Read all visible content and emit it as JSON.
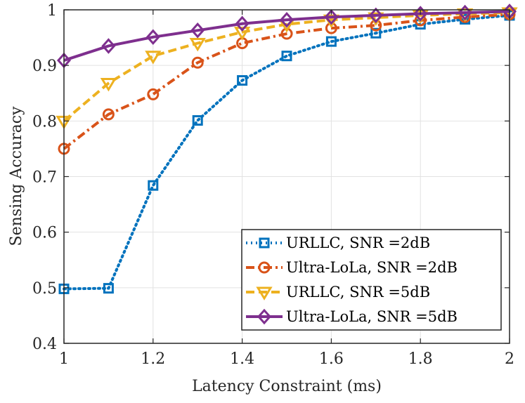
{
  "chart_data": {
    "type": "line",
    "title": "",
    "xlabel": "Latency Constraint (ms)",
    "ylabel": "Sensing Accuracy",
    "xlim": [
      1,
      2
    ],
    "ylim": [
      0.4,
      1
    ],
    "grid": true,
    "legend_position": "bottom-right",
    "x": [
      1.0,
      1.1,
      1.2,
      1.3,
      1.4,
      1.5,
      1.6,
      1.7,
      1.8,
      1.9,
      2.0
    ],
    "x_ticks": [
      1,
      1.2,
      1.4,
      1.6,
      1.8,
      2
    ],
    "x_tick_labels": [
      "1",
      "1.2",
      "1.4",
      "1.6",
      "1.8",
      "2"
    ],
    "y_ticks": [
      0.4,
      0.5,
      0.6,
      0.7,
      0.8,
      0.9,
      1
    ],
    "y_tick_labels": [
      "0.4",
      "0.5",
      "0.6",
      "0.7",
      "0.8",
      "0.9",
      "1"
    ],
    "series": [
      {
        "name": "URLLC, SNR =2dB",
        "color": "#0072BD",
        "style": "dotted",
        "marker": "square",
        "values": [
          0.498,
          0.499,
          0.684,
          0.801,
          0.873,
          0.917,
          0.943,
          0.958,
          0.974,
          0.983,
          0.99
        ]
      },
      {
        "name": "Ultra-LoLa, SNR =2dB",
        "color": "#D95319",
        "style": "dashdot",
        "marker": "circle",
        "values": [
          0.75,
          0.812,
          0.848,
          0.905,
          0.94,
          0.957,
          0.967,
          0.972,
          0.981,
          0.987,
          0.992
        ]
      },
      {
        "name": "URLLC, SNR =5dB",
        "color": "#EDB120",
        "style": "dashed",
        "marker": "triangle-down",
        "values": [
          0.8,
          0.868,
          0.917,
          0.94,
          0.96,
          0.974,
          0.982,
          0.986,
          0.99,
          0.993,
          0.995
        ]
      },
      {
        "name": "Ultra-LoLa, SNR =5dB",
        "color": "#7E2F8E",
        "style": "solid",
        "marker": "diamond",
        "values": [
          0.909,
          0.935,
          0.951,
          0.963,
          0.975,
          0.982,
          0.987,
          0.99,
          0.993,
          0.995,
          0.997
        ]
      }
    ]
  }
}
